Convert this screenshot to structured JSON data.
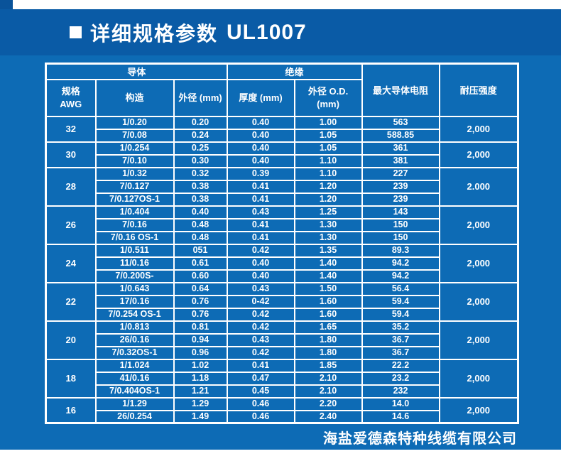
{
  "header": {
    "title": "详细规格参数",
    "code": "UL1007"
  },
  "footer": {
    "company": "海盐爱德森特种线缆有限公司"
  },
  "colors": {
    "band_blue": "#0a5ba6",
    "body_blue": "#0d6bb5",
    "corner_blue": "#09539a",
    "grid_white": "#ffffff",
    "text_white": "#ffffff"
  },
  "table": {
    "group_headers": [
      {
        "label": "导体",
        "span": 3
      },
      {
        "label": "绝缘",
        "span": 2
      }
    ],
    "columns": [
      "规格\nAWG",
      "构造",
      "外径 (mm)",
      "厚度 (mm)",
      "外径 O.D.\n(mm)",
      "最大导体电阻",
      "耐压强度"
    ],
    "groups": [
      {
        "awg": "32",
        "voltage": "2,000",
        "rows": [
          [
            "1/0.20",
            "0.20",
            "0.40",
            "1.00",
            "563"
          ],
          [
            "7/0.08",
            "0.24",
            "0.40",
            "1.05",
            "588.85"
          ]
        ]
      },
      {
        "awg": "30",
        "voltage": "2,000",
        "rows": [
          [
            "1/0.254",
            "0.25",
            "0.40",
            "1.05",
            "361"
          ],
          [
            "7/0.10",
            "0.30",
            "0.40",
            "1.10",
            "381"
          ]
        ]
      },
      {
        "awg": "28",
        "voltage": "2.000",
        "rows": [
          [
            "1/0.32",
            "0.32",
            "0.39",
            "1.10",
            "227"
          ],
          [
            "7/0.127",
            "0.38",
            "0.41",
            "1.20",
            "239"
          ],
          [
            "7/0.127OS-1",
            "0.38",
            "0.41",
            "1.20",
            "239"
          ]
        ]
      },
      {
        "awg": "26",
        "voltage": "2,000",
        "rows": [
          [
            "1/0.404",
            "0.40",
            "0.43",
            "1.25",
            "143"
          ],
          [
            "7/0.16",
            "0.48",
            "0.41",
            "1.30",
            "150"
          ],
          [
            "7/0.16 OS-1",
            "0.48",
            "0.41",
            "1.30",
            "150"
          ]
        ]
      },
      {
        "awg": "24",
        "voltage": "2,000",
        "rows": [
          [
            "1/0.511",
            "051",
            "0.42",
            "1.35",
            "89.3"
          ],
          [
            "11/0.16",
            "0.61",
            "0.40",
            "1.40",
            "94.2"
          ],
          [
            "7/0.200S-",
            "0.60",
            "0.40",
            "1.40",
            "94.2"
          ]
        ]
      },
      {
        "awg": "22",
        "voltage": "2,000",
        "rows": [
          [
            "1/0.643",
            "0.64",
            "0.43",
            "1.50",
            "56.4"
          ],
          [
            "17/0.16",
            "0.76",
            "0-42",
            "1.60",
            "59.4"
          ],
          [
            "7/0.254 OS-1",
            "0.76",
            "0.42",
            "1.60",
            "59.4"
          ]
        ]
      },
      {
        "awg": "20",
        "voltage": "2,000",
        "rows": [
          [
            "1/0.813",
            "0.81",
            "0.42",
            "1.65",
            "35.2"
          ],
          [
            "26/0.16",
            "0.94",
            "0.43",
            "1.80",
            "36.7"
          ],
          [
            "7/0.32OS-1",
            "0.96",
            "0.42",
            "1.80",
            "36.7"
          ]
        ]
      },
      {
        "awg": "18",
        "voltage": "2,000",
        "rows": [
          [
            "1/1.024",
            "1.02",
            "0.41",
            "1.85",
            "22.2"
          ],
          [
            "41/0.16",
            "1.18",
            "0.47",
            "2.10",
            "23.2"
          ],
          [
            "7/0.404OS-1",
            "1.21",
            "0.45",
            "2.10",
            "232"
          ]
        ]
      },
      {
        "awg": "16",
        "voltage": "2,000",
        "rows": [
          [
            "1/1.29",
            "1.29",
            "0.46",
            "2.20",
            "14.0"
          ],
          [
            "26/0.254",
            "1.49",
            "0.46",
            "2.40",
            "14.6"
          ]
        ]
      }
    ]
  }
}
